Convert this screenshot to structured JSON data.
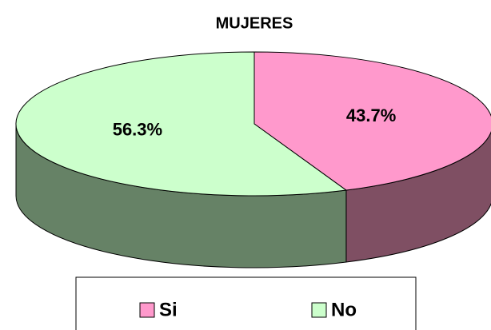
{
  "chart_data": {
    "type": "pie",
    "title": "MUJERES",
    "categories": [
      "Si",
      "No"
    ],
    "values": [
      43.7,
      56.3
    ],
    "value_labels": [
      "43.7%",
      "56.3%"
    ],
    "colors": [
      "#ff99cc",
      "#ccffcc"
    ],
    "side_colors": [
      "#7f4f63",
      "#668266"
    ],
    "legend": "bottom"
  }
}
